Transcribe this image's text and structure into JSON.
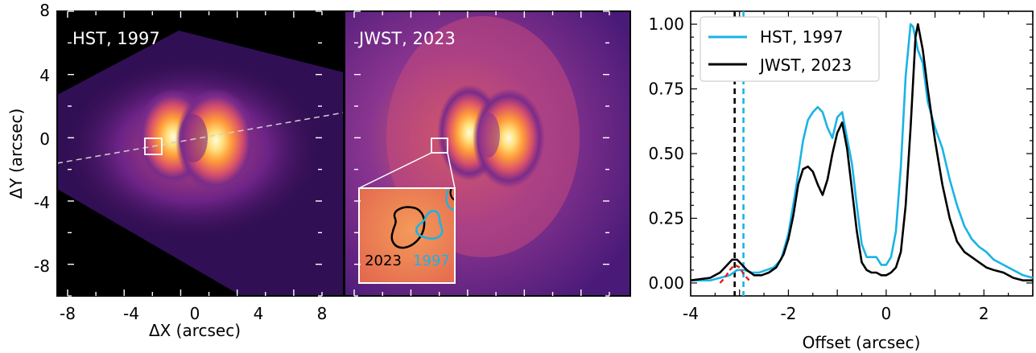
{
  "figure": {
    "panels": [
      {
        "label": "HST, 1997",
        "xlabel": "ΔX (arcsec)",
        "ylabel": "ΔY (arcsec)",
        "xticks": [
          "-8",
          "-4",
          "0",
          "4",
          "8"
        ],
        "yticks": [
          "8",
          "4",
          "0",
          "-4",
          "-8"
        ]
      },
      {
        "label": "JWST, 2023",
        "inset_labels": {
          "year_a": "2023",
          "year_b": "1997"
        }
      }
    ],
    "colors": {
      "hst": "#1ab3e6",
      "jwst": "#000000",
      "model": "#e0201b"
    }
  },
  "chart_data": {
    "type": "line",
    "xlabel": "Offset (arcsec)",
    "xlim": [
      -4,
      3
    ],
    "ylim": [
      -0.05,
      1.05
    ],
    "xticks": [
      "-4",
      "-2",
      "0",
      "2"
    ],
    "yticks": [
      "0.00",
      "0.25",
      "0.50",
      "0.75",
      "1.00"
    ],
    "legend_position": "top-left",
    "vlines": [
      {
        "x": -3.1,
        "color": "#000000",
        "style": "dashed"
      },
      {
        "x": -2.92,
        "color": "#1ab3e6",
        "style": "dashed"
      }
    ],
    "series": [
      {
        "name": "HST, 1997",
        "color": "#1ab3e6",
        "x": [
          -4.0,
          -3.6,
          -3.4,
          -3.2,
          -3.05,
          -2.9,
          -2.75,
          -2.6,
          -2.45,
          -2.3,
          -2.15,
          -2.0,
          -1.85,
          -1.7,
          -1.6,
          -1.5,
          -1.4,
          -1.3,
          -1.2,
          -1.1,
          -1.0,
          -0.9,
          -0.8,
          -0.7,
          -0.6,
          -0.5,
          -0.4,
          -0.3,
          -0.2,
          -0.1,
          0.0,
          0.1,
          0.2,
          0.3,
          0.4,
          0.5,
          0.55,
          0.65,
          0.75,
          0.85,
          1.0,
          1.15,
          1.3,
          1.45,
          1.6,
          1.75,
          1.9,
          2.05,
          2.2,
          2.4,
          2.6,
          2.8,
          3.0
        ],
        "y": [
          0.01,
          0.01,
          0.02,
          0.03,
          0.05,
          0.05,
          0.04,
          0.04,
          0.05,
          0.06,
          0.09,
          0.19,
          0.36,
          0.55,
          0.63,
          0.66,
          0.68,
          0.66,
          0.6,
          0.56,
          0.64,
          0.66,
          0.56,
          0.46,
          0.3,
          0.15,
          0.1,
          0.1,
          0.1,
          0.07,
          0.07,
          0.1,
          0.2,
          0.45,
          0.8,
          1.0,
          0.99,
          0.9,
          0.85,
          0.7,
          0.6,
          0.52,
          0.4,
          0.3,
          0.22,
          0.17,
          0.14,
          0.12,
          0.09,
          0.07,
          0.05,
          0.03,
          0.02
        ]
      },
      {
        "name": "JWST, 2023",
        "color": "#000000",
        "x": [
          -4.0,
          -3.6,
          -3.4,
          -3.25,
          -3.15,
          -3.05,
          -2.95,
          -2.85,
          -2.7,
          -2.55,
          -2.4,
          -2.25,
          -2.1,
          -2.0,
          -1.9,
          -1.8,
          -1.7,
          -1.6,
          -1.5,
          -1.4,
          -1.3,
          -1.2,
          -1.1,
          -1.0,
          -0.9,
          -0.8,
          -0.7,
          -0.6,
          -0.5,
          -0.4,
          -0.3,
          -0.2,
          -0.1,
          0.0,
          0.1,
          0.2,
          0.3,
          0.4,
          0.5,
          0.6,
          0.65,
          0.75,
          0.85,
          1.0,
          1.15,
          1.3,
          1.45,
          1.6,
          1.75,
          1.9,
          2.05,
          2.2,
          2.4,
          2.6,
          2.8,
          3.0
        ],
        "y": [
          0.01,
          0.02,
          0.04,
          0.07,
          0.09,
          0.09,
          0.07,
          0.05,
          0.03,
          0.03,
          0.04,
          0.06,
          0.11,
          0.17,
          0.26,
          0.38,
          0.44,
          0.45,
          0.43,
          0.38,
          0.34,
          0.4,
          0.5,
          0.58,
          0.62,
          0.52,
          0.36,
          0.2,
          0.08,
          0.05,
          0.04,
          0.04,
          0.03,
          0.03,
          0.04,
          0.06,
          0.12,
          0.3,
          0.6,
          0.95,
          1.0,
          0.9,
          0.75,
          0.55,
          0.38,
          0.25,
          0.16,
          0.12,
          0.1,
          0.08,
          0.06,
          0.05,
          0.04,
          0.02,
          0.01,
          0.01
        ]
      },
      {
        "name": "",
        "color": "#e0201b",
        "style": "dashed",
        "x": [
          -3.4,
          -3.3,
          -3.2,
          -3.1,
          -3.0,
          -2.9,
          -2.8
        ],
        "y": [
          0.0,
          0.02,
          0.05,
          0.07,
          0.06,
          0.03,
          0.01
        ]
      }
    ]
  }
}
